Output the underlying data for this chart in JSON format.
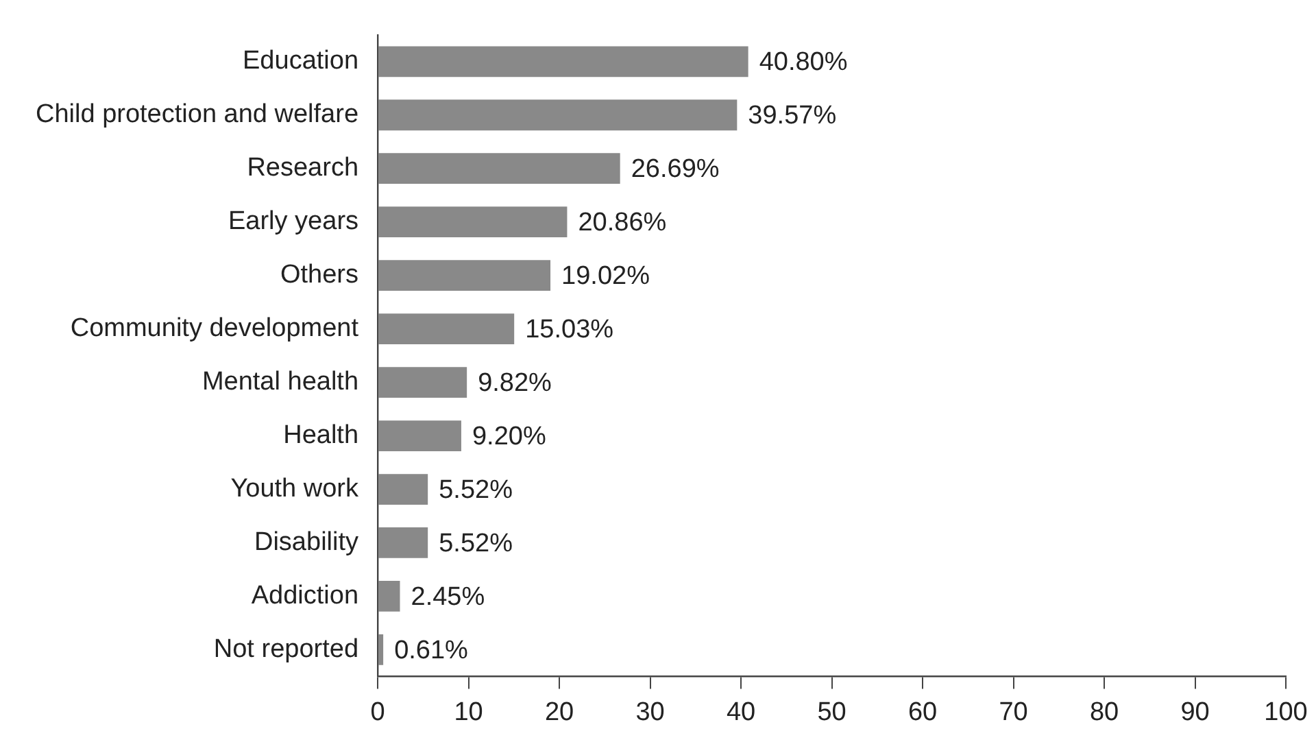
{
  "chart_data": {
    "type": "bar",
    "orientation": "horizontal",
    "categories": [
      "Education",
      "Child protection and welfare",
      "Research",
      "Early years",
      "Others",
      "Community development",
      "Mental health",
      "Health",
      "Youth work",
      "Disability",
      "Addiction",
      "Not reported"
    ],
    "values": [
      40.8,
      39.57,
      26.69,
      20.86,
      19.02,
      15.03,
      9.82,
      9.2,
      5.52,
      5.52,
      2.45,
      0.61
    ],
    "value_labels": [
      "40.80%",
      "39.57%",
      "26.69%",
      "20.86%",
      "19.02%",
      "15.03%",
      "9.82%",
      "9.20%",
      "5.52%",
      "5.52%",
      "2.45%",
      "0.61%"
    ],
    "color": "#898989",
    "xlim": [
      0,
      100
    ],
    "xticks": [
      0,
      10,
      20,
      30,
      40,
      50,
      60,
      70,
      80,
      90,
      100
    ],
    "grid": false,
    "legend": false
  }
}
